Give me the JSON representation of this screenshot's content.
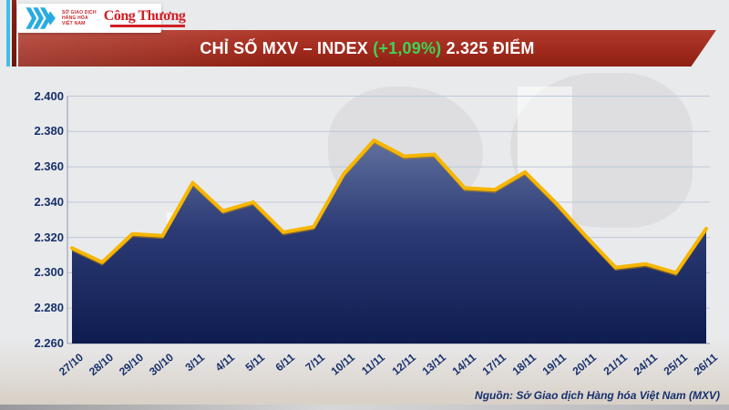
{
  "header": {
    "logo": {
      "org_lines": [
        "SỞ GIAO DỊCH",
        "HÀNG HÓA",
        "VIỆT NAM"
      ],
      "newspaper": "Công Thương",
      "mark_color": "#29abe2"
    },
    "banner": {
      "title_main": "CHỈ SỐ MXV – INDEX",
      "title_change": "(+1,09%)",
      "title_value": "2.325 ĐIỂM",
      "change_color": "#3bd455"
    }
  },
  "chart_data": {
    "type": "area",
    "title": "CHỈ SỐ MXV – INDEX (+1,09%) 2.325 ĐIỂM",
    "unit": "điểm",
    "x": [
      "27/10",
      "28/10",
      "29/10",
      "30/10",
      "3/11",
      "4/11",
      "5/11",
      "6/11",
      "7/11",
      "10/11",
      "11/11",
      "12/11",
      "13/11",
      "14/11",
      "17/11",
      "18/11",
      "19/11",
      "20/11",
      "21/11",
      "24/11",
      "25/11",
      "26/11"
    ],
    "values": [
      2314,
      2306,
      2322,
      2321,
      2351,
      2335,
      2340,
      2323,
      2326,
      2356,
      2375,
      2366,
      2367,
      2348,
      2347,
      2357,
      2340,
      2321,
      2303,
      2305,
      2300,
      2325
    ],
    "ylim": [
      2260,
      2400
    ],
    "ytick_step": 20,
    "ytick_labels": [
      "2.260",
      "2.280",
      "2.300",
      "2.320",
      "2.340",
      "2.360",
      "2.380",
      "2.400"
    ],
    "grid": true,
    "legend": false,
    "line_color": "#f6b600",
    "line_shadow": "#c98c00",
    "fill_top": "#60709e",
    "fill_mid": "#2b3a74",
    "fill_bottom": "#0e1c50",
    "grid_color": "#bdc8d8",
    "axis_color": "#8b95a8"
  },
  "footer": {
    "source": "Nguồn: Sở Giao dịch Hàng hóa Việt Nam (MXV)"
  }
}
